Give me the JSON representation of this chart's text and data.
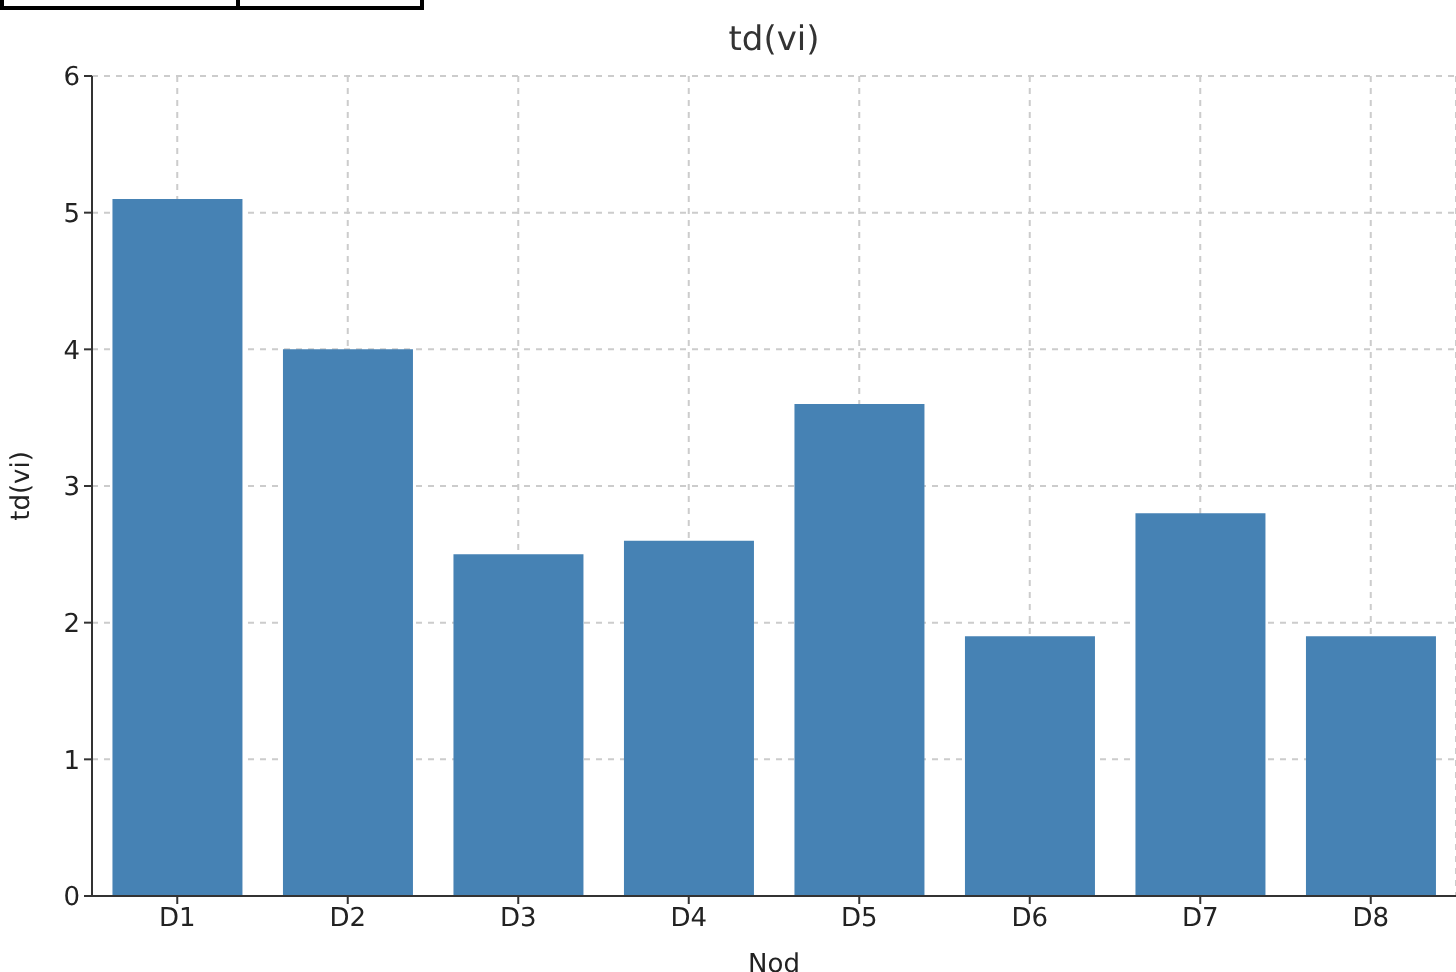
{
  "chart_data": {
    "type": "bar",
    "title": "td(vi)",
    "xlabel": "Nod",
    "ylabel": "td(vi)",
    "categories": [
      "D1",
      "D2",
      "D3",
      "D4",
      "D5",
      "D6",
      "D7",
      "D8"
    ],
    "values": [
      5.1,
      4.0,
      2.5,
      2.6,
      3.6,
      1.9,
      2.8,
      1.9
    ],
    "color": "#4682b4",
    "ylim": [
      0,
      6
    ],
    "yticks": [
      0,
      1,
      2,
      3,
      4,
      5,
      6
    ],
    "grid": true
  }
}
